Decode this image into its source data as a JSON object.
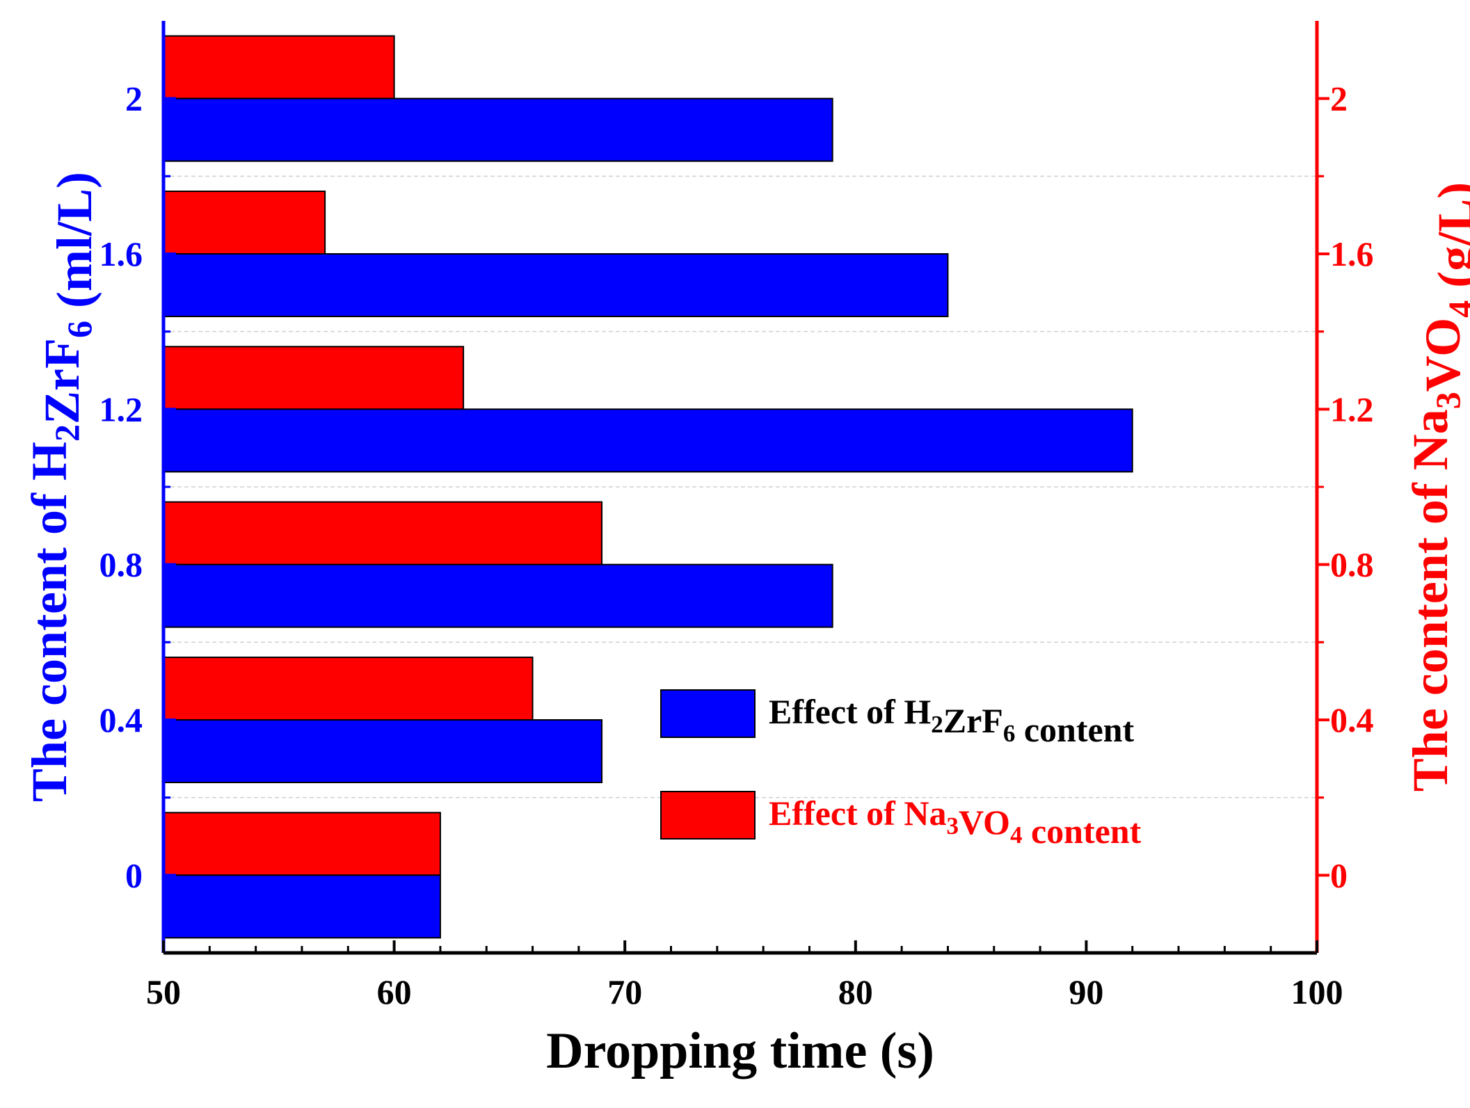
{
  "chart_data": {
    "type": "bar",
    "orientation": "horizontal",
    "categories": [
      "0",
      "0.4",
      "0.8",
      "1.2",
      "1.6",
      "2"
    ],
    "series": [
      {
        "name": "Effect of H2ZrF6 content",
        "legend": {
          "base": "Effect of H",
          "sub1": "2",
          "mid": "ZrF",
          "sub2": "6",
          "tail": " content"
        },
        "color": "#0000ff",
        "axis": "left",
        "values": [
          62,
          69,
          79,
          92,
          84,
          79
        ]
      },
      {
        "name": "Effect of Na3VO4 content",
        "legend": {
          "base": "Effect of Na",
          "sub1": "3",
          "mid": "VO",
          "sub2": "4",
          "tail": " content"
        },
        "color": "#ff0000",
        "axis": "right",
        "values": [
          62,
          66,
          69,
          63,
          57,
          60
        ]
      }
    ],
    "xlabel": "Dropping time (s)",
    "xlim": [
      50,
      100
    ],
    "xticks": [
      "50",
      "60",
      "70",
      "80",
      "90",
      "100"
    ],
    "ylabel_left": {
      "base": "The content of H",
      "sub1": "2",
      "mid": "ZrF",
      "sub2": "6",
      "tail": " (ml/L)"
    },
    "ylabel_right": {
      "base": "The content of Na",
      "sub1": "3",
      "mid": "VO",
      "sub2": "4",
      "tail": " (g/L)"
    },
    "ylim": [
      -0.2,
      2.2
    ],
    "yticks_left": [
      "0",
      "0.4",
      "0.8",
      "1.2",
      "1.6",
      "2"
    ],
    "yticks_right": [
      "0",
      "0.4",
      "0.8",
      "1.2",
      "1.6",
      "2"
    ],
    "left_axis_color": "#0000ff",
    "right_axis_color": "#ff0000",
    "legend_position": "lower-right"
  }
}
